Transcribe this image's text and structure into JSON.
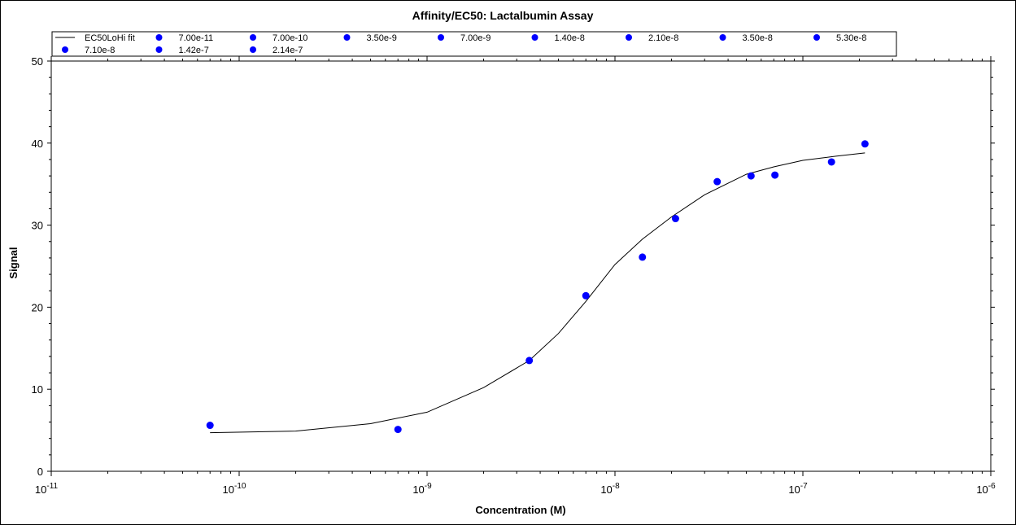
{
  "chart_data": {
    "type": "scatter",
    "title": "Affinity/EC50: Lactalbumin Assay",
    "xlabel": "Concentration (M)",
    "ylabel": "Signal",
    "x_scale": "log",
    "xlim": [
      1e-11,
      1e-06
    ],
    "ylim": [
      0,
      50
    ],
    "y_ticks": [
      0,
      10,
      20,
      30,
      40,
      50
    ],
    "x_tick_labels": [
      {
        "value": 1e-11,
        "base": "10",
        "exp": "-11"
      },
      {
        "value": 1e-10,
        "base": "10",
        "exp": "-10"
      },
      {
        "value": 1e-09,
        "base": "10",
        "exp": "-9"
      },
      {
        "value": 1e-08,
        "base": "10",
        "exp": "-8"
      },
      {
        "value": 1e-07,
        "base": "10",
        "exp": "-7"
      },
      {
        "value": 1e-06,
        "base": "10",
        "exp": "-6"
      }
    ],
    "grid": false,
    "legend_position": "top",
    "colors": {
      "points": "#0000ff",
      "fit": "#000000",
      "axes": "#000000"
    },
    "fit": {
      "name": "EC50LoHi fit",
      "x": [
        7e-11,
        2e-10,
        5e-10,
        1e-09,
        2e-09,
        3.5e-09,
        5e-09,
        7e-09,
        1e-08,
        1.4e-08,
        2e-08,
        3e-08,
        5e-08,
        7e-08,
        1e-07,
        1.5e-07,
        2.14e-07
      ],
      "y": [
        4.7,
        4.9,
        5.8,
        7.2,
        10.2,
        13.5,
        16.8,
        20.7,
        25.2,
        28.3,
        31.0,
        33.7,
        36.2,
        37.1,
        37.9,
        38.4,
        38.8
      ]
    },
    "series": [
      {
        "name": "7.00e-11",
        "x": 7e-11,
        "y": 5.6
      },
      {
        "name": "7.00e-10",
        "x": 7e-10,
        "y": 5.1
      },
      {
        "name": "3.50e-9",
        "x": 3.5e-09,
        "y": 13.5
      },
      {
        "name": "7.00e-9",
        "x": 7e-09,
        "y": 21.4
      },
      {
        "name": "1.40e-8",
        "x": 1.4e-08,
        "y": 26.1
      },
      {
        "name": "2.10e-8",
        "x": 2.1e-08,
        "y": 30.8
      },
      {
        "name": "3.50e-8",
        "x": 3.5e-08,
        "y": 35.3
      },
      {
        "name": "5.30e-8",
        "x": 5.3e-08,
        "y": 36.0
      },
      {
        "name": "7.10e-8",
        "x": 7.1e-08,
        "y": 36.1
      },
      {
        "name": "1.42e-7",
        "x": 1.42e-07,
        "y": 37.7
      },
      {
        "name": "2.14e-7",
        "x": 2.14e-07,
        "y": 39.9
      }
    ]
  }
}
